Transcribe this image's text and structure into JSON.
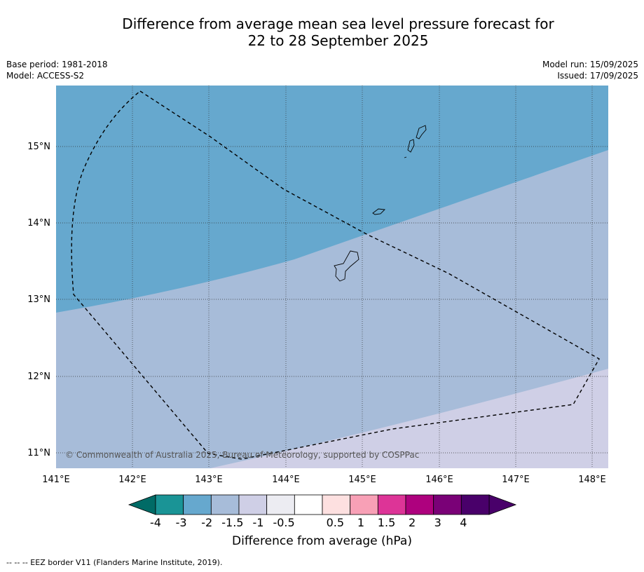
{
  "title_line1": "Difference from average mean sea level pressure forecast for",
  "title_line2": "22 to 28 September 2025",
  "base_period": "Base period: 1981-2018",
  "model": "Model: ACCESS-S2",
  "model_run": "Model run: 15/09/2025",
  "issued": "Issued: 17/09/2025",
  "latitude_labels": [
    "15°N",
    "14°N",
    "13°N",
    "12°N",
    "11°N"
  ],
  "longitude_labels": [
    "141°E",
    "142°E",
    "143°E",
    "144°E",
    "145°E",
    "146°E",
    "147°E",
    "148°E"
  ],
  "copyright": "© Commonwealth of Australia 2025, Bureau of Meteorology, supported by COSPPac",
  "colorbar": {
    "title": "Difference from average (hPa)",
    "tick_labels": [
      "-4",
      "-3",
      "-2",
      "-1.5",
      "-1",
      "-0.5",
      "0.5",
      "1",
      "1.5",
      "2",
      "3",
      "4"
    ],
    "colors": [
      "#1a9496",
      "#66a8ce",
      "#a7bcd9",
      "#cfcfe6",
      "#ececf2",
      "#ffffff",
      "#fde0e0",
      "#f8a0b6",
      "#dd3497",
      "#ae017e",
      "#7a0177",
      "#49006a"
    ],
    "extend_low_color": "#006b66",
    "extend_high_color": "#49006a"
  },
  "map_fill": {
    "band_minus_3_to_minus_2": "#66a8ce",
    "band_minus_2_to_minus_1_5": "#a7bcd9",
    "band_minus_1_5_to_minus_1": "#cfcfe6"
  },
  "footnote": "--  --  -- EEZ border V11 (Flanders Marine Institute, 2019)."
}
